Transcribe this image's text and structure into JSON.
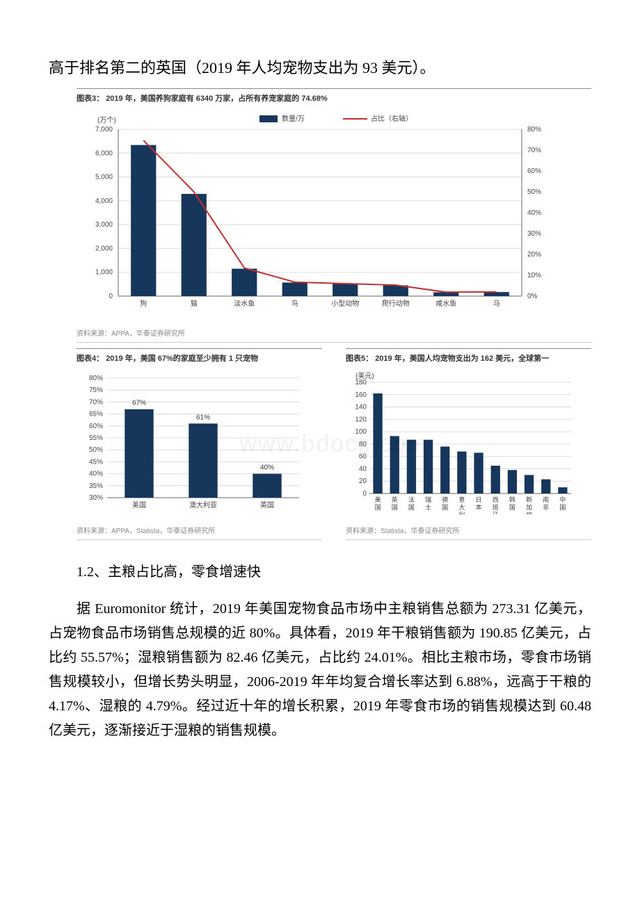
{
  "top_line": "高于排名第二的英国（2019 年人均宠物支出为 93 美元）。",
  "watermark": "www.bdocx.com",
  "chart3": {
    "type": "bar+line",
    "title_label": "图表3：",
    "title_text": "2019 年，美国养狗家庭有 6340 万家，占所有养宠家庭的 74.68%",
    "y1_label": "(万个)",
    "legend_bar": "数量/万",
    "legend_line": "占比（右轴）",
    "categories": [
      "狗",
      "猫",
      "淡水鱼",
      "鸟",
      "小型动物",
      "爬行动物",
      "咸水鱼",
      "马"
    ],
    "bar_values": [
      6340,
      4290,
      1150,
      570,
      510,
      450,
      160,
      170
    ],
    "line_values_pct": [
      74.68,
      50,
      13.5,
      6.7,
      6.0,
      5.3,
      1.9,
      2.0
    ],
    "y1_min": 0,
    "y1_max": 7000,
    "y1_step": 1000,
    "y2_min": 0,
    "y2_max": 80,
    "y2_step": 10,
    "bar_color": "#16365c",
    "line_color": "#c12f2f",
    "grid_color": "#dcdcdc",
    "axis_color": "#666666",
    "source": "资料来源：APPA，华泰证券研究所"
  },
  "chart4": {
    "type": "bar",
    "title_label": "图表4：",
    "title_text": "2019 年，美国 67%的家庭至少拥有 1 只宠物",
    "categories": [
      "美国",
      "澳大利亚",
      "英国"
    ],
    "values_pct": [
      67,
      61,
      40
    ],
    "y_min": 30,
    "y_max": 80,
    "y_step": 5,
    "bar_color": "#16365c",
    "grid_color": "#dcdcdc",
    "axis_color": "#666666",
    "source": "资料来源：APPA，Statista，华泰证券研究所"
  },
  "chart5": {
    "type": "bar",
    "title_label": "图表5：",
    "title_text": "2019 年，美国人均宠物支出为 162 美元，全球第一",
    "y_label": "(美元)",
    "categories": [
      "美国",
      "英国",
      "法国",
      "瑞士",
      "德国",
      "意大利",
      "日本",
      "西班牙",
      "韩国",
      "新加坡",
      "南非",
      "中国"
    ],
    "values": [
      162,
      93,
      87,
      87,
      76,
      68,
      66,
      45,
      38,
      30,
      23,
      10
    ],
    "y_min": 0,
    "y_max": 180,
    "y_step": 20,
    "bar_color": "#16365c",
    "grid_color": "#dcdcdc",
    "axis_color": "#666666",
    "source": "资料来源：Statista，华泰证券研究所"
  },
  "section_heading": "1.2、主粮占比高，零食增速快",
  "body_para": "据 Euromonitor 统计，2019 年美国宠物食品市场中主粮销售总额为 273.31 亿美元，占宠物食品市场销售总规模的近 80%。具体看，2019 年干粮销售额为 190.85 亿美元，占比约 55.57%；湿粮销售额为 82.46 亿美元，占比约 24.01%。相比主粮市场，零食市场销售规模较小，但增长势头明显，2006-2019 年年均复合增长率达到 6.88%，远高于干粮的 4.17%、湿粮的 4.79%。经过近十年的增长积累，2019 年零食市场的销售规模达到 60.48 亿美元，逐渐接近于湿粮的销售规模。"
}
